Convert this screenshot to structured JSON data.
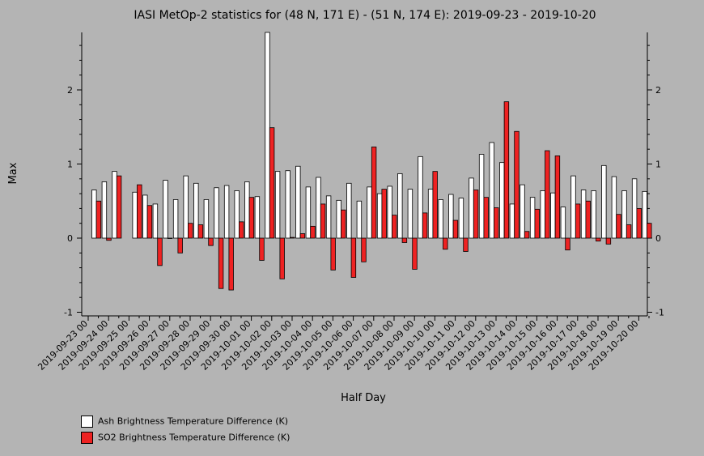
{
  "chart_data": {
    "type": "bar",
    "title": "IASI MetOp-2 statistics for (48 N, 171 E) - (51 N, 174 E): 2019-09-23 - 2019-10-20",
    "xlabel": "Half Day",
    "ylabel": "Max",
    "ylim": [
      -1.05,
      2.8
    ],
    "yticks": [
      -1,
      0,
      1,
      2
    ],
    "grid": false,
    "legend_position": "bottom-left",
    "date_labels": [
      "2019-09-23 00",
      "2019-09-24 00",
      "2019-09-25 00",
      "2019-09-26 00",
      "2019-09-27 00",
      "2019-09-28 00",
      "2019-09-29 00",
      "2019-09-30 00",
      "2019-10-01 00",
      "2019-10-02 00",
      "2019-10-03 00",
      "2019-10-04 00",
      "2019-10-05 00",
      "2019-10-06 00",
      "2019-10-07 00",
      "2019-10-08 00",
      "2019-10-09 00",
      "2019-10-10 00",
      "2019-10-11 00",
      "2019-10-12 00",
      "2019-10-13 00",
      "2019-10-14 00",
      "2019-10-15 00",
      "2019-10-16 00",
      "2019-10-17 00",
      "2019-10-18 00",
      "2019-10-19 00",
      "2019-10-20 00"
    ],
    "series": [
      {
        "name": "Ash Brightness Temperature Difference (K)",
        "color": "#ffffff",
        "values": [
          0.65,
          0.76,
          0.9,
          null,
          0.62,
          0.58,
          0.46,
          0.78,
          0.52,
          0.84,
          0.74,
          0.52,
          0.68,
          0.71,
          0.64,
          0.76,
          0.56,
          2.8,
          0.9,
          0.91,
          0.97,
          0.69,
          0.82,
          0.57,
          0.51,
          0.74,
          0.5,
          0.69,
          0.6,
          0.7,
          0.87,
          0.66,
          1.1,
          0.66,
          0.52,
          0.59,
          0.54,
          0.81,
          1.13,
          1.29,
          1.02,
          0.46,
          0.72,
          0.55,
          0.64,
          0.61,
          0.42,
          0.84,
          0.65,
          0.64,
          0.98,
          0.83,
          0.64,
          0.8,
          0.63
        ]
      },
      {
        "name": "SO2 Brightness Temperature Difference (K)",
        "color": "#ee2222",
        "values": [
          0.5,
          -0.03,
          0.84,
          null,
          0.72,
          0.44,
          -0.37,
          0.0,
          -0.2,
          0.2,
          0.18,
          -0.1,
          -0.68,
          -0.7,
          0.22,
          0.55,
          -0.3,
          1.49,
          -0.55,
          0.01,
          0.06,
          0.16,
          0.46,
          -0.43,
          0.38,
          -0.53,
          -0.32,
          1.23,
          0.66,
          0.31,
          -0.06,
          -0.42,
          0.34,
          0.9,
          -0.15,
          0.24,
          -0.18,
          0.65,
          0.55,
          0.41,
          1.84,
          1.44,
          0.09,
          0.39,
          1.18,
          1.11,
          -0.16,
          0.46,
          0.5,
          -0.04,
          -0.08,
          0.32,
          0.18,
          0.4,
          0.2
        ]
      }
    ]
  }
}
